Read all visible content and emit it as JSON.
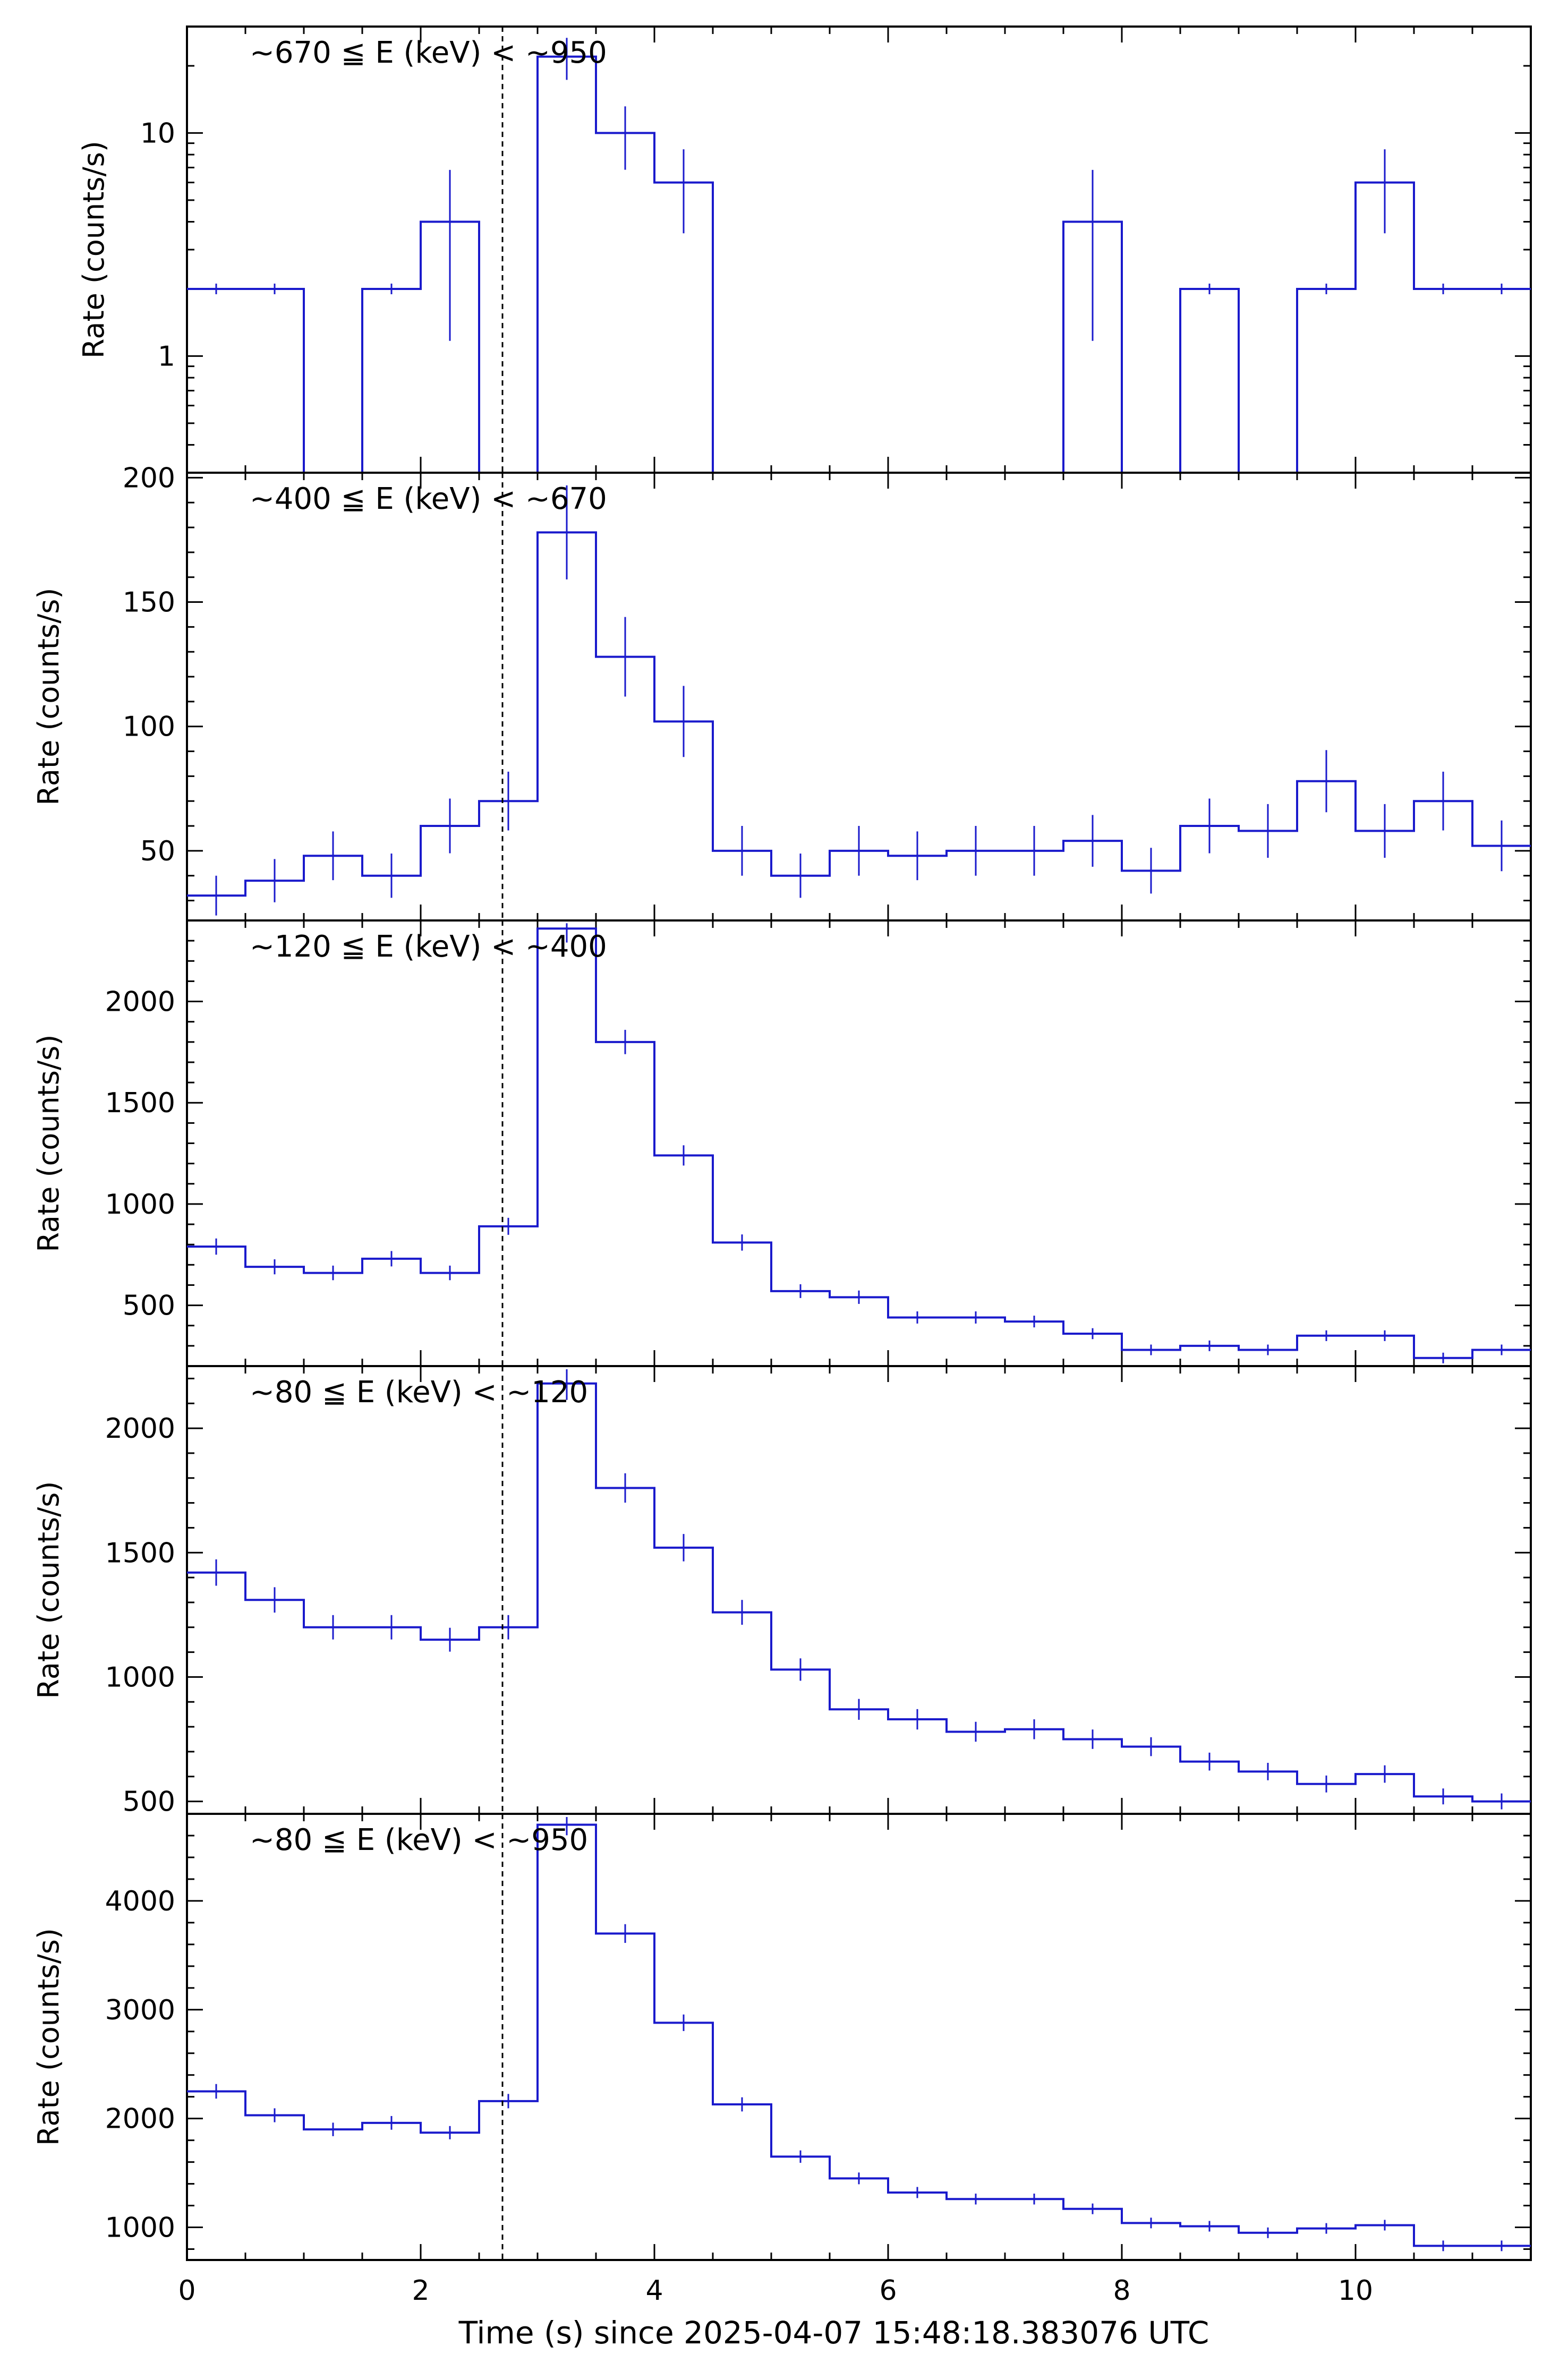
{
  "figure": {
    "xlabel": "Time (s) since 2025-04-07 15:48:18.383076 UTC",
    "x_tick_labels": [
      "0",
      "2",
      "4",
      "6",
      "8",
      "10"
    ],
    "trigger_line_label": "",
    "colors": {
      "data": "#1a1acc",
      "axes": "#000000",
      "trigger": "#000000"
    }
  },
  "chart_data": [
    {
      "type": "step",
      "title": "~670 ≦ E (keV) < ~950",
      "ylabel": "Rate (counts/s)",
      "yscale": "log",
      "ylim": [
        0.3,
        30
      ],
      "y_tick_values": [
        1,
        10
      ],
      "y_tick_labels": [
        "1",
        "10"
      ],
      "xlim": [
        0,
        11.5
      ],
      "trigger_time": 2.7,
      "bin_edges": [
        0,
        0.5,
        1,
        1.5,
        2,
        2.5,
        3,
        3.5,
        4,
        4.5,
        5,
        5.5,
        6,
        6.5,
        7,
        7.5,
        8,
        8.5,
        9,
        9.5,
        10,
        10.5,
        11,
        11.5
      ],
      "values": [
        2,
        2,
        0,
        2,
        4,
        0,
        22,
        10,
        6,
        0,
        0,
        0,
        0,
        0,
        0,
        4,
        0,
        2,
        0,
        2,
        6,
        2,
        2
      ],
      "errors": [
        null,
        null,
        null,
        null,
        2.83,
        null,
        4.7,
        3.16,
        2.45,
        null,
        null,
        null,
        null,
        null,
        null,
        2.83,
        null,
        null,
        null,
        null,
        2.45,
        null,
        null
      ]
    },
    {
      "type": "step",
      "title": "~400 ≦ E (keV) < ~670",
      "ylabel": "Rate (counts/s)",
      "yscale": "linear",
      "ylim": [
        22,
        202
      ],
      "y_tick_values": [
        50,
        100,
        150,
        200
      ],
      "y_tick_labels": [
        "50",
        "100",
        "150",
        "200"
      ],
      "xlim": [
        0,
        11.5
      ],
      "trigger_time": 2.7,
      "bin_edges": [
        0,
        0.5,
        1,
        1.5,
        2,
        2.5,
        3,
        3.5,
        4,
        4.5,
        5,
        5.5,
        6,
        6.5,
        7,
        7.5,
        8,
        8.5,
        9,
        9.5,
        10,
        10.5,
        11,
        11.5
      ],
      "values": [
        32,
        38,
        48,
        40,
        60,
        70,
        178,
        128,
        102,
        50,
        40,
        50,
        48,
        50,
        50,
        54,
        42,
        60,
        58,
        78,
        58,
        70,
        52
      ],
      "errors": [
        8,
        8.7,
        9.8,
        8.9,
        11,
        11.8,
        18.9,
        16,
        14.3,
        10,
        8.9,
        10,
        9.8,
        10,
        10,
        10.4,
        9.2,
        11,
        10.8,
        12.5,
        10.8,
        11.8,
        10.2
      ]
    },
    {
      "type": "step",
      "title": "~120 ≦ E (keV) < ~400",
      "ylabel": "Rate (counts/s)",
      "yscale": "linear",
      "ylim": [
        200,
        2400
      ],
      "y_tick_values": [
        500,
        1000,
        1500,
        2000
      ],
      "y_tick_labels": [
        "500",
        "1000",
        "1500",
        "2000"
      ],
      "xlim": [
        0,
        11.5
      ],
      "trigger_time": 2.7,
      "bin_edges": [
        0,
        0.5,
        1,
        1.5,
        2,
        2.5,
        3,
        3.5,
        4,
        4.5,
        5,
        5.5,
        6,
        6.5,
        7,
        7.5,
        8,
        8.5,
        9,
        9.5,
        10,
        10.5,
        11,
        11.5
      ],
      "values": [
        790,
        690,
        660,
        730,
        660,
        890,
        2360,
        1800,
        1240,
        810,
        570,
        540,
        440,
        440,
        420,
        360,
        280,
        300,
        280,
        350,
        350,
        240,
        280
      ],
      "errors": [
        40,
        37,
        36,
        38,
        36,
        42,
        69,
        60,
        50,
        40,
        34,
        33,
        30,
        30,
        29,
        27,
        24,
        24,
        24,
        26,
        26,
        22,
        24
      ]
    },
    {
      "type": "step",
      "title": "~80 ≦ E (keV) < ~120",
      "ylabel": "Rate (counts/s)",
      "yscale": "linear",
      "ylim": [
        450,
        2250
      ],
      "y_tick_values": [
        500,
        1000,
        1500,
        2000
      ],
      "y_tick_labels": [
        "500",
        "1000",
        "1500",
        "2000"
      ],
      "xlim": [
        0,
        11.5
      ],
      "trigger_time": 2.7,
      "bin_edges": [
        0,
        0.5,
        1,
        1.5,
        2,
        2.5,
        3,
        3.5,
        4,
        4.5,
        5,
        5.5,
        6,
        6.5,
        7,
        7.5,
        8,
        8.5,
        9,
        9.5,
        10,
        10.5,
        11,
        11.5
      ],
      "values": [
        1420,
        1310,
        1200,
        1200,
        1150,
        1200,
        2180,
        1760,
        1520,
        1260,
        1030,
        870,
        830,
        780,
        790,
        750,
        720,
        660,
        620,
        570,
        610,
        520,
        500
      ],
      "errors": [
        53,
        51,
        49,
        49,
        48,
        49,
        66,
        59,
        55,
        50,
        45,
        42,
        41,
        40,
        40,
        39,
        38,
        36,
        35,
        34,
        35,
        32,
        32
      ]
    },
    {
      "type": "step",
      "title": "~80 ≦ E (keV) < ~950",
      "ylabel": "Rate (counts/s)",
      "yscale": "linear",
      "ylim": [
        700,
        4800
      ],
      "y_tick_values": [
        1000,
        2000,
        3000,
        4000
      ],
      "y_tick_labels": [
        "1000",
        "2000",
        "3000",
        "4000"
      ],
      "xlim": [
        0,
        11.5
      ],
      "trigger_time": 2.7,
      "bin_edges": [
        0,
        0.5,
        1,
        1.5,
        2,
        2.5,
        3,
        3.5,
        4,
        4.5,
        5,
        5.5,
        6,
        6.5,
        7,
        7.5,
        8,
        8.5,
        9,
        9.5,
        10,
        10.5,
        11,
        11.5
      ],
      "values": [
        2250,
        2030,
        1900,
        1960,
        1870,
        2160,
        4700,
        3700,
        2880,
        2130,
        1650,
        1450,
        1320,
        1260,
        1260,
        1170,
        1040,
        1010,
        950,
        990,
        1020,
        830,
        830
      ],
      "errors": [
        67,
        64,
        62,
        63,
        61,
        66,
        97,
        86,
        76,
        65,
        57,
        54,
        51,
        50,
        50,
        48,
        46,
        45,
        44,
        44,
        45,
        41,
        41
      ]
    }
  ]
}
